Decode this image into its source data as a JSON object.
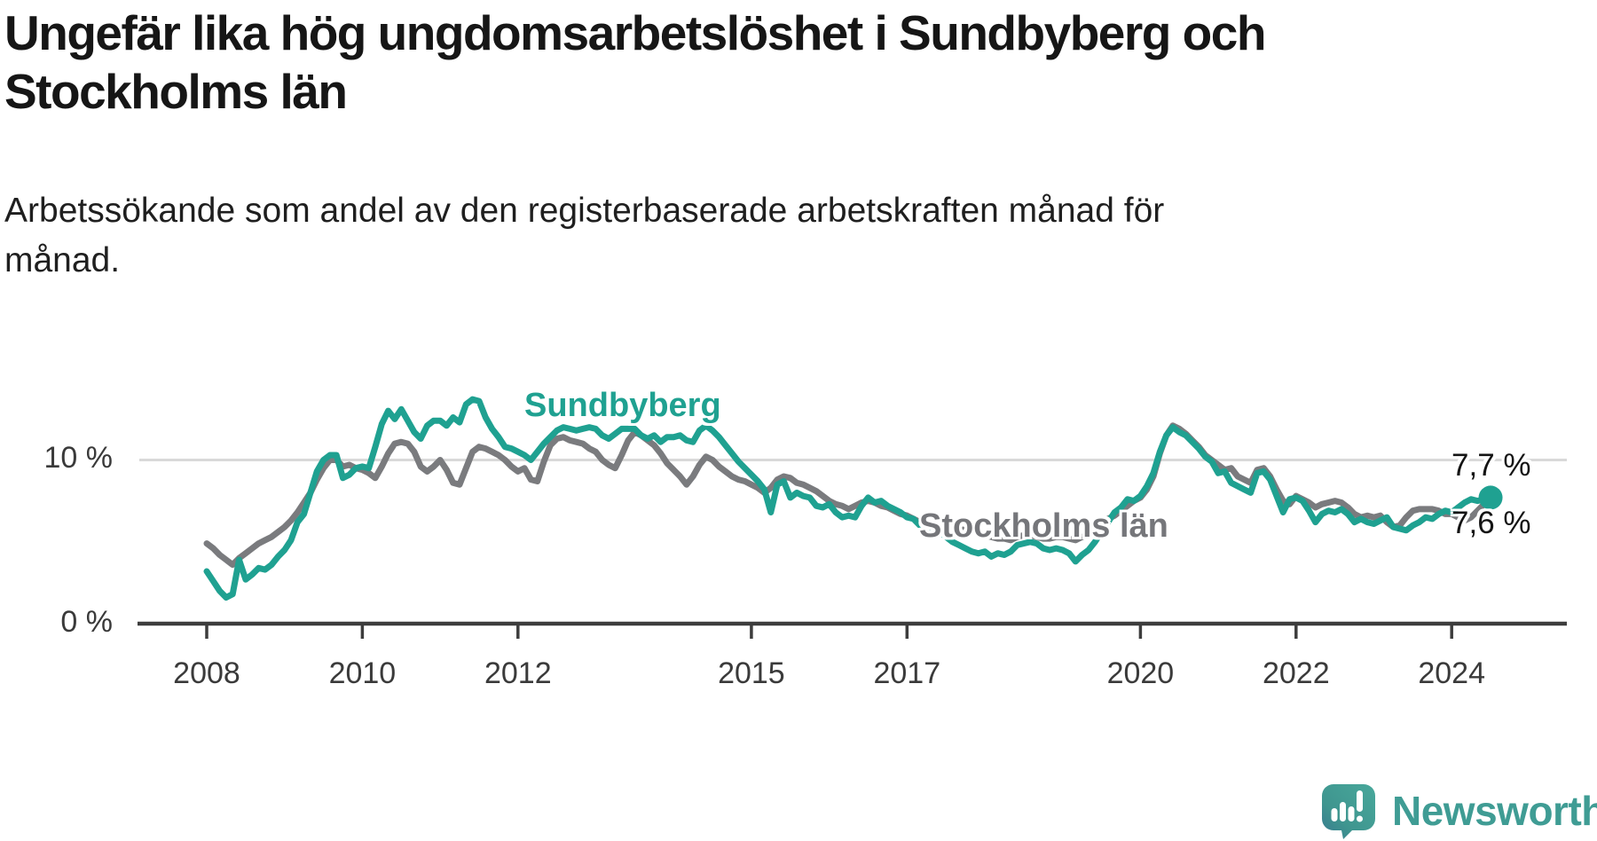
{
  "header": {
    "title": "Ungefär lika hög ungdomsarbetslöshet i Sundbyberg och Stockholms län",
    "subtitle": "Arbetssökande som andel av den registerbaserade arbetskraften månad för månad."
  },
  "colors": {
    "sundbyberg": "#1fa191",
    "stockholm": "#7a7b7e",
    "stockholm_label": "#75767a",
    "gridline": "#d9d9d9",
    "axis": "#3d3d3d",
    "text_dark": "#161616",
    "brand_teal": "#3f9c94"
  },
  "chart_data": {
    "type": "line",
    "title": "Ungefär lika hög ungdomsarbetslöshet i Sundbyberg och Stockholms län",
    "subtitle": "Arbetssökande som andel av den registerbaserade arbetskraften månad för månad.",
    "unit": "%",
    "frequency": "monthly",
    "x_start_year": 2008,
    "points_per_year": 12,
    "x_end_label_period": "mid-2024",
    "ylim": [
      0,
      15.5
    ],
    "grid_y_values": [
      10
    ],
    "y_tick_labels": [
      "10 %",
      "0 %"
    ],
    "x_ticks": [
      2008,
      2010,
      2012,
      2015,
      2017,
      2020,
      2022,
      2024
    ],
    "x_tick_labels": [
      "2008",
      "2010",
      "2012",
      "2015",
      "2017",
      "2020",
      "2022",
      "2024"
    ],
    "legend_position": "inline-on-chart",
    "grid": "horizontal-only",
    "end_dot_series": "Sundbyberg",
    "end_labels": {
      "Sundbyberg": "7,7 %",
      "Stockholms län": "7,6 %"
    },
    "series": [
      {
        "name": "Sundbyberg",
        "color": "#1fa191",
        "final_value": 7.7,
        "values": [
          3.2,
          2.6,
          2.0,
          1.6,
          1.8,
          3.9,
          2.7,
          3.0,
          3.4,
          3.3,
          3.6,
          4.1,
          4.5,
          5.1,
          6.2,
          6.7,
          8.0,
          9.3,
          10.0,
          10.3,
          10.3,
          8.9,
          9.1,
          9.5,
          9.6,
          9.5,
          10.8,
          12.2,
          13.0,
          12.5,
          13.1,
          12.4,
          11.7,
          11.3,
          12.1,
          12.4,
          12.4,
          12.1,
          12.6,
          12.3,
          13.4,
          13.7,
          13.6,
          12.6,
          11.9,
          11.4,
          10.8,
          10.7,
          10.5,
          10.3,
          10.0,
          10.5,
          11.0,
          11.4,
          11.8,
          12.0,
          11.9,
          11.8,
          11.9,
          12.0,
          11.9,
          11.5,
          11.3,
          11.6,
          11.9,
          11.9,
          11.9,
          11.5,
          11.3,
          11.5,
          11.1,
          11.4,
          11.4,
          11.5,
          11.2,
          11.1,
          11.8,
          12.1,
          11.8,
          11.4,
          10.9,
          10.4,
          9.9,
          9.5,
          9.1,
          8.7,
          8.2,
          6.8,
          8.5,
          8.7,
          7.7,
          8.0,
          7.8,
          7.7,
          7.2,
          7.1,
          7.3,
          6.8,
          6.5,
          6.6,
          6.5,
          7.2,
          7.7,
          7.4,
          7.5,
          7.2,
          7.0,
          6.8,
          6.5,
          6.4,
          6.0,
          5.7,
          5.4,
          5.6,
          5.3,
          5.0,
          4.8,
          4.6,
          4.4,
          4.3,
          4.4,
          4.1,
          4.3,
          4.2,
          4.4,
          4.8,
          4.9,
          5.0,
          4.9,
          4.6,
          4.5,
          4.6,
          4.5,
          4.3,
          3.8,
          4.2,
          4.5,
          5.0,
          5.6,
          6.2,
          6.8,
          7.1,
          7.6,
          7.5,
          7.8,
          8.4,
          9.2,
          10.5,
          11.5,
          12.0,
          11.7,
          11.5,
          11.1,
          10.7,
          10.2,
          9.9,
          9.2,
          9.3,
          8.6,
          8.4,
          8.2,
          8.0,
          9.2,
          9.3,
          8.8,
          7.8,
          6.8,
          7.6,
          7.7,
          7.5,
          6.9,
          6.2,
          6.7,
          6.9,
          6.8,
          7.0,
          6.7,
          6.2,
          6.4,
          6.2,
          6.1,
          6.3,
          6.5,
          5.9,
          5.8,
          5.7,
          6.0,
          6.2,
          6.5,
          6.4,
          6.7,
          6.9,
          6.8,
          7.1,
          7.4,
          7.6,
          7.5,
          7.6,
          7.7
        ]
      },
      {
        "name": "Stockholms län",
        "color": "#7a7b7e",
        "final_value": 7.6,
        "values": [
          4.9,
          4.6,
          4.2,
          3.9,
          3.6,
          4.0,
          4.3,
          4.6,
          4.9,
          5.1,
          5.3,
          5.6,
          5.9,
          6.3,
          6.8,
          7.4,
          8.0,
          8.8,
          9.5,
          10.0,
          10.0,
          9.6,
          9.7,
          9.5,
          9.4,
          9.2,
          8.9,
          9.6,
          10.4,
          11.0,
          11.1,
          11.0,
          10.5,
          9.6,
          9.3,
          9.6,
          10.0,
          9.4,
          8.6,
          8.5,
          9.5,
          10.5,
          10.8,
          10.7,
          10.5,
          10.3,
          10.0,
          9.6,
          9.3,
          9.5,
          8.8,
          8.7,
          9.9,
          10.9,
          11.3,
          11.4,
          11.2,
          11.1,
          11.0,
          10.7,
          10.5,
          10.0,
          9.7,
          9.5,
          10.3,
          11.2,
          11.7,
          11.5,
          11.2,
          10.9,
          10.4,
          9.8,
          9.4,
          9.0,
          8.5,
          9.0,
          9.7,
          10.2,
          10.0,
          9.6,
          9.3,
          9.0,
          8.8,
          8.7,
          8.5,
          8.3,
          8.0,
          8.3,
          8.8,
          9.0,
          8.9,
          8.6,
          8.5,
          8.3,
          8.1,
          7.8,
          7.5,
          7.3,
          7.2,
          7.0,
          7.2,
          7.4,
          7.5,
          7.4,
          7.2,
          7.1,
          6.9,
          6.7,
          6.6,
          6.4,
          6.2,
          6.1,
          6.0,
          6.2,
          6.1,
          5.9,
          5.8,
          5.7,
          5.6,
          5.5,
          5.4,
          5.3,
          5.2,
          5.2,
          5.1,
          5.3,
          5.4,
          5.4,
          5.3,
          5.2,
          5.2,
          5.3,
          5.3,
          5.2,
          5.1,
          5.3,
          5.5,
          5.8,
          6.2,
          6.4,
          6.6,
          6.9,
          7.2,
          7.5,
          7.7,
          8.2,
          9.0,
          10.4,
          11.5,
          12.1,
          11.9,
          11.6,
          11.2,
          10.8,
          10.3,
          10.0,
          9.7,
          9.4,
          9.5,
          9.0,
          8.8,
          8.6,
          9.4,
          9.5,
          9.0,
          8.2,
          7.5,
          7.3,
          7.8,
          7.6,
          7.4,
          7.1,
          7.3,
          7.4,
          7.5,
          7.4,
          7.1,
          6.7,
          6.5,
          6.6,
          6.5,
          6.6,
          6.2,
          5.9,
          6.0,
          6.5,
          6.9,
          7.0,
          7.0,
          7.0,
          6.9,
          6.7,
          6.7,
          6.5,
          6.3,
          6.5,
          6.9,
          7.3,
          7.6
        ]
      }
    ]
  },
  "legend": {
    "sundbyberg": "Sundbyberg",
    "stockholm": "Stockholms län"
  },
  "end_labels": {
    "sundbyberg": "7,7 %",
    "stockholm": "7,6 %"
  },
  "footer": {
    "brand": "Newsworthy"
  }
}
